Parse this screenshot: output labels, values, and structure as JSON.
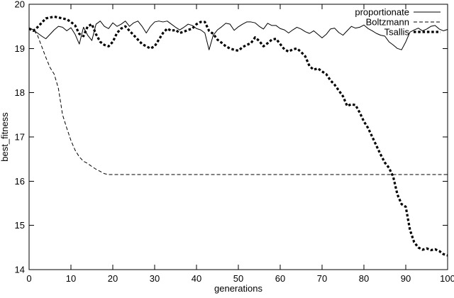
{
  "chart_data": {
    "type": "line",
    "title": "",
    "xlabel": "generations",
    "ylabel": "best_fitness",
    "xlim": [
      0,
      100
    ],
    "ylim": [
      14,
      20
    ],
    "xticks": [
      0,
      10,
      20,
      30,
      40,
      50,
      60,
      70,
      80,
      90,
      100
    ],
    "yticks": [
      14,
      15,
      16,
      17,
      18,
      19,
      20
    ],
    "grid": false,
    "legend_position": "top-right-inside",
    "background_color": "#ffffff",
    "line_color": "#000000",
    "x": [
      0,
      1,
      2,
      3,
      4,
      5,
      6,
      7,
      8,
      9,
      10,
      11,
      12,
      13,
      14,
      15,
      16,
      17,
      18,
      19,
      20,
      21,
      22,
      23,
      24,
      25,
      26,
      27,
      28,
      29,
      30,
      31,
      32,
      33,
      34,
      35,
      36,
      37,
      38,
      39,
      40,
      41,
      42,
      43,
      44,
      45,
      46,
      47,
      48,
      49,
      50,
      51,
      52,
      53,
      54,
      55,
      56,
      57,
      58,
      59,
      60,
      61,
      62,
      63,
      64,
      65,
      66,
      67,
      68,
      69,
      70,
      71,
      72,
      73,
      74,
      75,
      76,
      77,
      78,
      79,
      80,
      81,
      82,
      83,
      84,
      85,
      86,
      87,
      88,
      89,
      90,
      91,
      92,
      93,
      94,
      95,
      96,
      97,
      98,
      99,
      100
    ],
    "series": [
      {
        "name": "proportionate",
        "style": "solid",
        "stroke_width": 1,
        "values": [
          19.47,
          19.42,
          19.35,
          19.28,
          19.22,
          19.32,
          19.42,
          19.5,
          19.48,
          19.4,
          19.47,
          19.32,
          19.1,
          19.48,
          19.3,
          19.18,
          19.55,
          19.62,
          19.5,
          19.45,
          19.58,
          19.5,
          19.55,
          19.62,
          19.5,
          19.58,
          19.62,
          19.5,
          19.35,
          19.5,
          19.6,
          19.62,
          19.6,
          19.62,
          19.55,
          19.48,
          19.42,
          19.48,
          19.55,
          19.52,
          19.45,
          19.42,
          19.35,
          18.97,
          19.3,
          19.42,
          19.49,
          19.57,
          19.55,
          19.41,
          19.49,
          19.55,
          19.6,
          19.6,
          19.58,
          19.5,
          19.44,
          19.57,
          19.52,
          19.52,
          19.45,
          19.42,
          19.35,
          19.42,
          19.48,
          19.44,
          19.38,
          19.34,
          19.4,
          19.32,
          19.24,
          19.32,
          19.44,
          19.46,
          19.36,
          19.3,
          19.4,
          19.5,
          19.46,
          19.48,
          19.53,
          19.45,
          19.4,
          19.34,
          19.3,
          19.28,
          19.15,
          19.08,
          19.0,
          18.97,
          19.15,
          19.37,
          19.42,
          19.46,
          19.4,
          19.44,
          19.5,
          19.52,
          19.44,
          19.4,
          19.43
        ]
      },
      {
        "name": "Boltzmann",
        "style": "dashed",
        "stroke_width": 1,
        "values": [
          19.45,
          19.43,
          19.3,
          19.05,
          18.8,
          18.57,
          18.42,
          18.1,
          17.5,
          17.2,
          16.92,
          16.7,
          16.55,
          16.45,
          16.4,
          16.33,
          16.27,
          16.22,
          16.17,
          16.15,
          16.15,
          16.15,
          16.15,
          16.15,
          16.15,
          16.15,
          16.15,
          16.15,
          16.15,
          16.15,
          16.15,
          16.15,
          16.15,
          16.15,
          16.15,
          16.15,
          16.15,
          16.15,
          16.15,
          16.15,
          16.15,
          16.15,
          16.15,
          16.15,
          16.15,
          16.15,
          16.15,
          16.15,
          16.15,
          16.15,
          16.15,
          16.15,
          16.15,
          16.15,
          16.15,
          16.15,
          16.15,
          16.15,
          16.15,
          16.15,
          16.15,
          16.15,
          16.15,
          16.15,
          16.15,
          16.15,
          16.15,
          16.15,
          16.15,
          16.15,
          16.15,
          16.15,
          16.15,
          16.15,
          16.15,
          16.15,
          16.15,
          16.15,
          16.15,
          16.15,
          16.15,
          16.15,
          16.15,
          16.15,
          16.15,
          16.15,
          16.15,
          16.15,
          16.15,
          16.15,
          16.15,
          16.15,
          16.15,
          16.15,
          16.15,
          16.15,
          16.15,
          16.15,
          16.15,
          16.15,
          16.15
        ]
      },
      {
        "name": "Tsallis",
        "style": "thick-dotted",
        "stroke_width": 3.2,
        "values": [
          19.45,
          19.4,
          19.48,
          19.58,
          19.68,
          19.7,
          19.72,
          19.7,
          19.68,
          19.66,
          19.6,
          19.52,
          19.33,
          19.28,
          19.5,
          19.55,
          19.32,
          19.15,
          19.08,
          19.05,
          19.15,
          19.35,
          19.45,
          19.5,
          19.4,
          19.3,
          19.2,
          19.1,
          19.05,
          19.0,
          19.05,
          19.2,
          19.35,
          19.45,
          19.4,
          19.42,
          19.35,
          19.38,
          19.42,
          19.45,
          19.55,
          19.6,
          19.6,
          19.4,
          19.33,
          19.2,
          19.13,
          19.05,
          19.0,
          18.97,
          18.95,
          19.03,
          19.08,
          19.12,
          19.25,
          19.17,
          19.05,
          19.12,
          19.2,
          19.22,
          19.1,
          18.98,
          18.93,
          18.98,
          19.0,
          18.92,
          18.82,
          18.6,
          18.52,
          18.55,
          18.48,
          18.42,
          18.28,
          18.18,
          18.05,
          17.92,
          17.7,
          17.74,
          17.72,
          17.55,
          17.35,
          17.2,
          17.0,
          16.8,
          16.6,
          16.42,
          16.3,
          16.1,
          15.7,
          15.48,
          15.42,
          14.9,
          14.62,
          14.5,
          14.45,
          14.48,
          14.44,
          14.46,
          14.42,
          14.35,
          14.32
        ]
      }
    ]
  }
}
